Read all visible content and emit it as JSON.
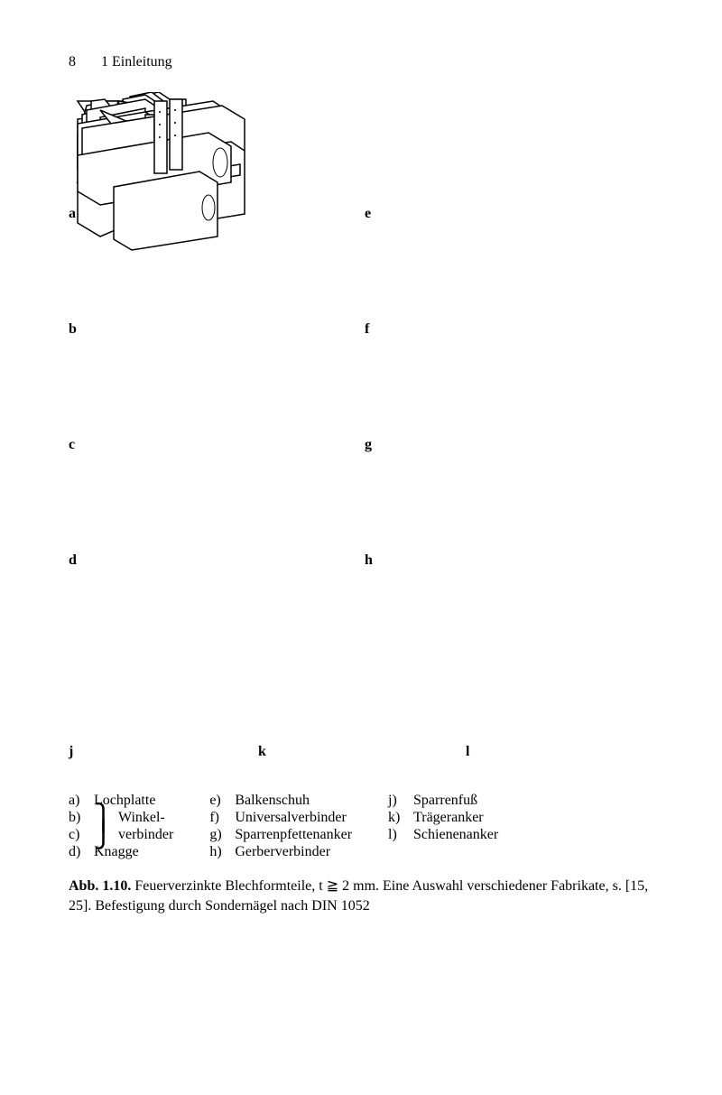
{
  "header": {
    "page_number": "8",
    "chapter_title": "1 Einleitung"
  },
  "grid": {
    "labels": [
      "a",
      "b",
      "c",
      "d",
      "e",
      "f",
      "g",
      "h",
      "j",
      "k",
      "l"
    ],
    "label_positions": {
      "a": [
        0,
        126
      ],
      "b": [
        0,
        254
      ],
      "c": [
        0,
        382
      ],
      "d": [
        0,
        510
      ],
      "e": [
        328,
        126
      ],
      "f": [
        328,
        254
      ],
      "g": [
        328,
        382
      ],
      "h": [
        328,
        510
      ],
      "j": [
        0,
        722
      ],
      "k": [
        210,
        722
      ],
      "l": [
        440,
        722
      ]
    },
    "stroke": "#000000",
    "bg": "#ffffff"
  },
  "legend": {
    "columns": [
      [
        {
          "letter": "a)",
          "text": "Lochplatte"
        },
        {
          "letter": "b)",
          "text": " Winkel-",
          "brace_open": true
        },
        {
          "letter": "c)",
          "text": " verbinder",
          "brace_close": true
        },
        {
          "letter": "d)",
          "text": "Knagge"
        }
      ],
      [
        {
          "letter": "e)",
          "text": "Balkenschuh"
        },
        {
          "letter": "f)",
          "text": "Universalverbinder"
        },
        {
          "letter": "g)",
          "text": "Sparrenpfettenanker"
        },
        {
          "letter": "h)",
          "text": "Gerberverbinder"
        }
      ],
      [
        {
          "letter": "j)",
          "text": "Sparrenfuß"
        },
        {
          "letter": "k)",
          "text": "Trägeranker"
        },
        {
          "letter": "l)",
          "text": "Schienenanker"
        }
      ]
    ]
  },
  "caption": {
    "label": "Abb. 1.10.",
    "text": "Feuerverzinkte Blechformteile, t ≧ 2 mm. Eine Auswahl verschiedener Fabrikate, s. [15, 25]. Befestigung durch Sondernägel nach DIN 1052"
  }
}
